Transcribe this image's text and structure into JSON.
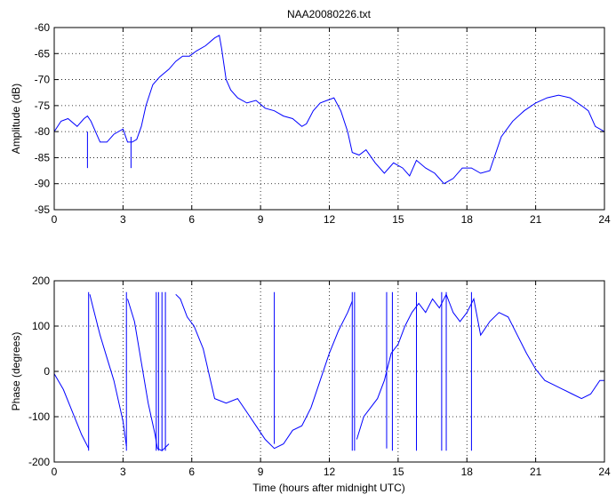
{
  "figure": {
    "title": "NAA20080226.txt",
    "xlabel": "Time (hours after midnight UTC)"
  },
  "chart_data": [
    {
      "type": "line",
      "title": "NAA20080226.txt",
      "xlabel": "",
      "ylabel": "Amplitude (dB)",
      "xlim": [
        0,
        24
      ],
      "ylim": [
        -95,
        -60
      ],
      "xticks": [
        0,
        3,
        6,
        9,
        12,
        15,
        18,
        21,
        24
      ],
      "yticks": [
        -95,
        -90,
        -85,
        -80,
        -75,
        -70,
        -65,
        -60
      ],
      "grid": true,
      "color": "#0000ff",
      "series": [
        {
          "x": [
            0,
            0.3,
            0.6,
            1.0,
            1.3,
            1.45,
            1.6,
            1.8,
            2.0,
            2.3,
            2.6,
            3.0,
            3.2,
            3.4,
            3.6,
            3.8,
            4.0,
            4.3,
            4.6,
            5.0,
            5.3,
            5.6,
            5.9,
            6.2,
            6.6,
            7.0,
            7.2,
            7.3,
            7.5,
            7.7,
            8.0,
            8.4,
            8.8,
            9.2,
            9.6,
            10.0,
            10.4,
            10.8,
            11.0,
            11.3,
            11.6,
            11.9,
            12.2,
            12.5,
            12.8,
            13.0,
            13.3,
            13.6,
            14.0,
            14.4,
            14.8,
            15.2,
            15.5,
            15.8,
            16.2,
            16.6,
            17.0,
            17.4,
            17.8,
            18.2,
            18.6,
            19.0,
            19.5,
            20.0,
            20.5,
            21.0,
            21.5,
            22.0,
            22.5,
            23.0,
            23.3,
            23.6,
            24.0
          ],
          "y": [
            -80,
            -78,
            -77.5,
            -79,
            -77.5,
            -77,
            -78,
            -80,
            -82,
            -82,
            -80.5,
            -79.5,
            -82,
            -82,
            -81.5,
            -79,
            -75,
            -71,
            -69.5,
            -68,
            -66.5,
            -65.5,
            -65.5,
            -64.5,
            -63.5,
            -62,
            -61.5,
            -64,
            -70,
            -72,
            -73.5,
            -74.5,
            -74,
            -75.5,
            -76,
            -77,
            -77.5,
            -79,
            -78.5,
            -76,
            -74.5,
            -74,
            -73.5,
            -76,
            -80,
            -84,
            -84.5,
            -83.5,
            -86,
            -88,
            -86,
            -87,
            -88.5,
            -85.5,
            -87,
            -88,
            -90,
            -89,
            -87,
            -87,
            -88,
            -87.5,
            -81,
            -78,
            -76,
            -74.5,
            -73.5,
            -73,
            -73.5,
            -75,
            -76,
            -79,
            -80
          ]
        }
      ],
      "spikes": [
        {
          "x": 1.45,
          "y": [
            -80,
            -87
          ]
        },
        {
          "x": 3.35,
          "y": [
            -81,
            -87
          ]
        }
      ]
    },
    {
      "type": "line",
      "title": "",
      "xlabel": "Time (hours after midnight UTC)",
      "ylabel": "Phase (degrees)",
      "xlim": [
        0,
        24
      ],
      "ylim": [
        -200,
        200
      ],
      "xticks": [
        0,
        3,
        6,
        9,
        12,
        15,
        18,
        21,
        24
      ],
      "yticks": [
        -200,
        -100,
        0,
        100,
        200
      ],
      "grid": true,
      "color": "#0000ff",
      "series": [
        {
          "x": [
            0,
            0.4,
            0.8,
            1.2,
            1.5,
            1.55,
            1.7,
            2.0,
            2.3,
            2.6,
            3.0,
            3.15,
            3.2,
            3.5,
            3.8,
            4.1,
            4.4,
            4.5,
            4.7,
            5.0,
            5.3,
            5.5,
            5.8,
            6.1,
            6.5,
            7.0,
            7.5,
            8.0,
            8.4,
            8.8,
            9.2,
            9.6,
            10.0,
            10.4,
            10.8,
            11.2,
            11.6,
            12.0,
            12.4,
            12.8,
            13.0,
            13.2,
            13.5,
            13.8,
            14.1,
            14.4,
            14.7,
            15.0,
            15.3,
            15.6,
            15.9,
            16.2,
            16.5,
            16.8,
            17.1,
            17.4,
            17.7,
            18.0,
            18.3,
            18.6,
            19.0,
            19.4,
            19.8,
            20.2,
            20.6,
            21.0,
            21.4,
            21.8,
            22.2,
            22.6,
            23.0,
            23.4,
            23.8,
            24.0
          ],
          "y": [
            -5,
            -40,
            -90,
            -140,
            -170,
            170,
            140,
            80,
            30,
            -20,
            -110,
            -165,
            160,
            110,
            20,
            -70,
            -140,
            -170,
            -175,
            -160,
            170,
            160,
            120,
            100,
            50,
            -60,
            -70,
            -60,
            -90,
            -120,
            -150,
            -170,
            -160,
            -130,
            -120,
            -80,
            -20,
            40,
            90,
            130,
            155,
            -150,
            -100,
            -80,
            -60,
            -20,
            40,
            60,
            100,
            130,
            150,
            130,
            160,
            140,
            170,
            130,
            110,
            130,
            160,
            80,
            110,
            130,
            120,
            80,
            40,
            5,
            -20,
            -30,
            -40,
            -50,
            -60,
            -50,
            -20,
            -20
          ]
        }
      ],
      "spikes": [
        {
          "x": 1.5,
          "y": [
            -175,
            175
          ]
        },
        {
          "x": 3.15,
          "y": [
            -175,
            175
          ]
        },
        {
          "x": 4.45,
          "y": [
            -175,
            175
          ]
        },
        {
          "x": 4.55,
          "y": [
            -175,
            175
          ]
        },
        {
          "x": 4.7,
          "y": [
            -175,
            175
          ]
        },
        {
          "x": 4.85,
          "y": [
            -175,
            175
          ]
        },
        {
          "x": 9.6,
          "y": [
            -160,
            175
          ]
        },
        {
          "x": 13.0,
          "y": [
            -175,
            175
          ]
        },
        {
          "x": 13.1,
          "y": [
            -175,
            175
          ]
        },
        {
          "x": 14.5,
          "y": [
            -170,
            175
          ]
        },
        {
          "x": 14.75,
          "y": [
            -175,
            175
          ]
        },
        {
          "x": 15.8,
          "y": [
            -175,
            175
          ]
        },
        {
          "x": 16.9,
          "y": [
            -175,
            175
          ]
        },
        {
          "x": 17.1,
          "y": [
            -175,
            175
          ]
        },
        {
          "x": 18.2,
          "y": [
            -175,
            175
          ]
        }
      ]
    }
  ]
}
